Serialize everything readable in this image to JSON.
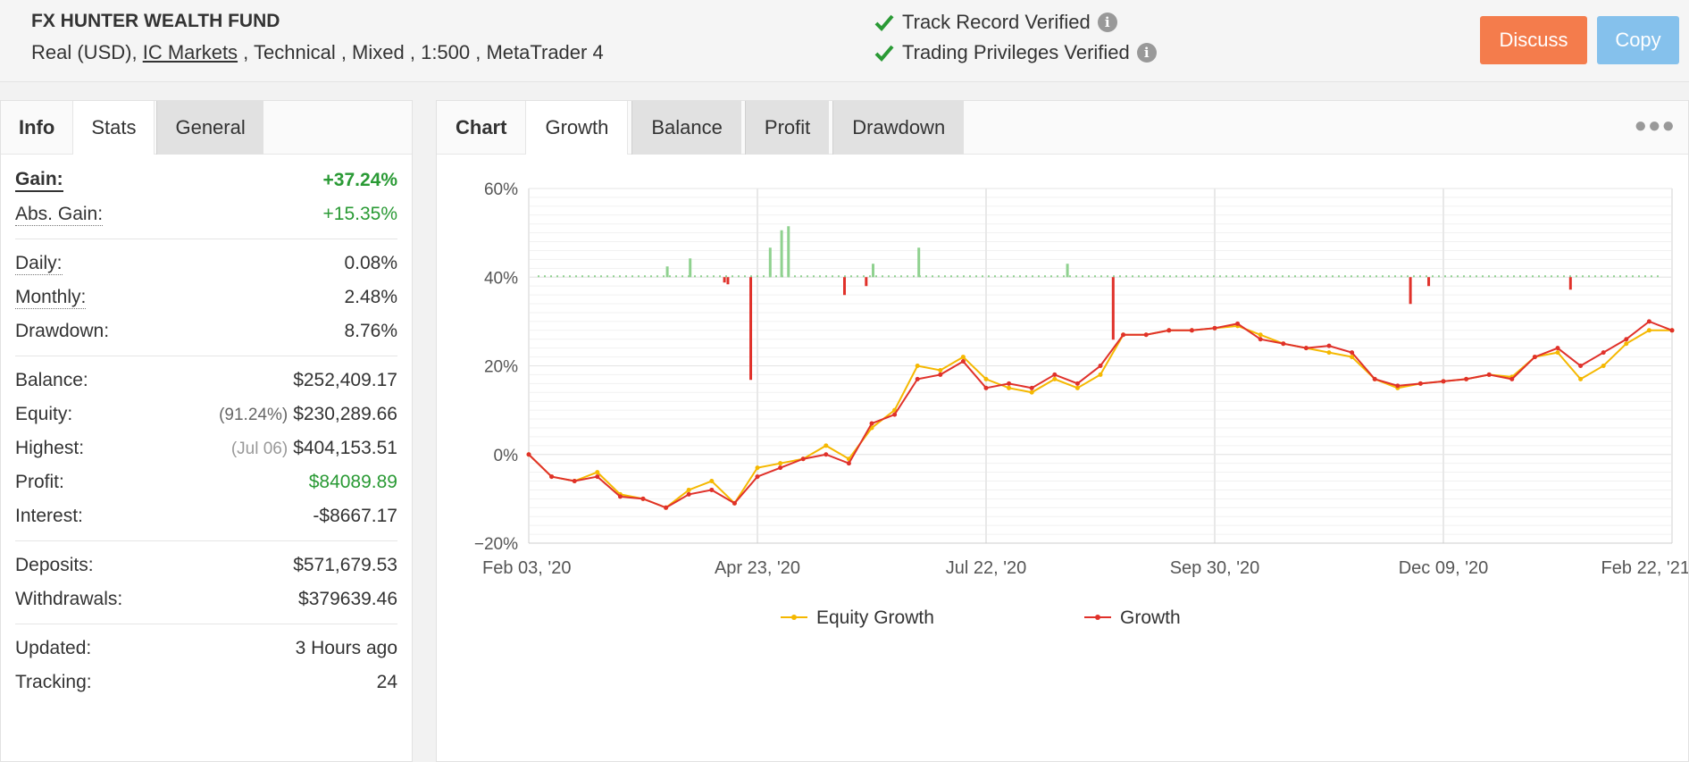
{
  "header": {
    "title": "FX HUNTER WEALTH FUND",
    "account_type": "Real (USD),",
    "broker": "IC Markets",
    "details": " , Technical , Mixed , 1:500 , MetaTrader 4",
    "verify": [
      "Track Record Verified",
      "Trading Privileges Verified"
    ],
    "discuss_label": "Discuss",
    "copy_label": "Copy",
    "check_color": "#2a9a35"
  },
  "left": {
    "tabs": [
      "Info",
      "Stats",
      "General"
    ],
    "gain_label": "Gain:",
    "gain_value": "+37.24%",
    "abs_gain_label": "Abs. Gain:",
    "abs_gain_value": "+15.35%",
    "daily_label": "Daily:",
    "daily_value": "0.08%",
    "monthly_label": "Monthly:",
    "monthly_value": "2.48%",
    "drawdown_label": "Drawdown:",
    "drawdown_value": "8.76%",
    "balance_label": "Balance:",
    "balance_value": "$252,409.17",
    "equity_label": "Equity:",
    "equity_pct": "(91.24%)",
    "equity_value": "$230,289.66",
    "highest_label": "Highest:",
    "highest_date": "(Jul 06)",
    "highest_value": "$404,153.51",
    "profit_label": "Profit:",
    "profit_value": "$84089.89",
    "interest_label": "Interest:",
    "interest_value": "-$8667.17",
    "deposits_label": "Deposits:",
    "deposits_value": "$571,679.53",
    "withdrawals_label": "Withdrawals:",
    "withdrawals_value": "$379639.46",
    "updated_label": "Updated:",
    "updated_value": "3 Hours ago",
    "tracking_label": "Tracking:",
    "tracking_value": "24"
  },
  "right": {
    "tabs": [
      "Chart",
      "Growth",
      "Balance",
      "Profit",
      "Drawdown"
    ],
    "menu_icon": "more-dots-icon"
  },
  "chart_data": {
    "type": "line",
    "title": "",
    "xlabel": "",
    "ylabel": "",
    "ylim": [
      -20,
      60
    ],
    "yticks": [
      "60%",
      "40%",
      "20%",
      "0%",
      "−20%"
    ],
    "xticks": [
      "Feb 03, '20",
      "Apr 23, '20",
      "Jul 22, '20",
      "Sep 30, '20",
      "Dec 09, '20",
      "Feb 22, '21"
    ],
    "grid": true,
    "legend_position": "bottom",
    "series": [
      {
        "name": "Equity Growth",
        "color": "#f5b800",
        "x": [
          0,
          2,
          4,
          6,
          8,
          10,
          12,
          14,
          16,
          18,
          20,
          22,
          24,
          26,
          28,
          30,
          32,
          34,
          36,
          38,
          40,
          42,
          44,
          46,
          48,
          50,
          52,
          54,
          56,
          58,
          60,
          62,
          64,
          66,
          68,
          70,
          72,
          74,
          76,
          78,
          80,
          82,
          84,
          86,
          88,
          90,
          92,
          94,
          96,
          98,
          100
        ],
        "y": [
          0,
          -5,
          -6,
          -4,
          -9,
          -10,
          -12,
          -8,
          -6,
          -11,
          -3,
          -2,
          -1,
          2,
          -1,
          6,
          10,
          20,
          19,
          22,
          17,
          15,
          14,
          17,
          15,
          18,
          27,
          27,
          28,
          28,
          28.5,
          29,
          27,
          25,
          24,
          23,
          22,
          17,
          15,
          16,
          16.5,
          17,
          18,
          17.5,
          22,
          23,
          17,
          20,
          25,
          28,
          28
        ],
        "comment_unused": ""
      },
      {
        "name": "Growth",
        "color": "#e0312a",
        "x": [
          0,
          2,
          4,
          6,
          8,
          10,
          12,
          14,
          16,
          18,
          20,
          22,
          24,
          26,
          28,
          30,
          32,
          34,
          36,
          38,
          40,
          42,
          44,
          46,
          48,
          50,
          52,
          54,
          56,
          58,
          60,
          62,
          64,
          66,
          68,
          70,
          72,
          74,
          76,
          78,
          80,
          82,
          84,
          86,
          88,
          90,
          92,
          94,
          96,
          98,
          100
        ],
        "y": [
          0,
          -5,
          -6,
          -5,
          -9.5,
          -10,
          -12,
          -9,
          -8,
          -11,
          -5,
          -3,
          -1,
          0,
          -2,
          7,
          9,
          17,
          18,
          21,
          15,
          16,
          15,
          18,
          16,
          20,
          27,
          27,
          28,
          28,
          28.5,
          29.5,
          26,
          25,
          24,
          24.5,
          23,
          17,
          15.5,
          16,
          16.5,
          17,
          18,
          17,
          22,
          24,
          20,
          23,
          26,
          30,
          28
        ]
      }
    ]
  }
}
